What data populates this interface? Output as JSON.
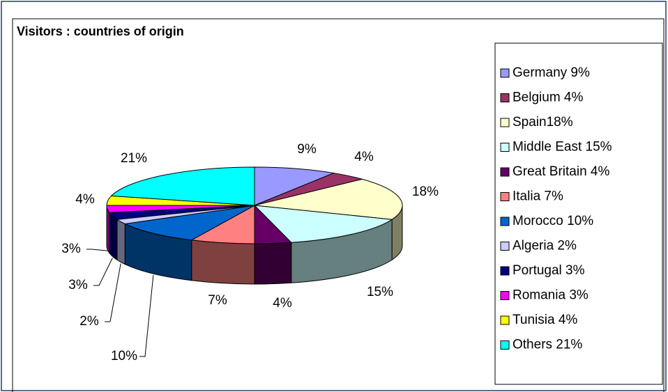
{
  "chart_data": {
    "type": "pie",
    "title": "Visitors : countries of origin",
    "categories": [
      "Germany 9%",
      "Belgium 4%",
      "Spain18%",
      "Middle East 15%",
      "Great Britain 4%",
      "Italia 7%",
      "Morocco 10%",
      "Algeria 2%",
      "Portugal 3%",
      "Romania 3%",
      "Tunisia 4%",
      "Others 21%"
    ],
    "values": [
      9,
      4,
      18,
      15,
      4,
      7,
      10,
      2,
      3,
      3,
      4,
      21
    ],
    "value_labels": [
      "9%",
      "4%",
      "18%",
      "15%",
      "4%",
      "7%",
      "10%",
      "2%",
      "3%",
      "3%",
      "4%",
      "21%"
    ],
    "colors": [
      "#9999ff",
      "#993366",
      "#ffffcc",
      "#ccffff",
      "#660066",
      "#ff8080",
      "#0066cc",
      "#ccccff",
      "#000080",
      "#ff00ff",
      "#ffff00",
      "#00ffff"
    ],
    "legend": "right"
  }
}
